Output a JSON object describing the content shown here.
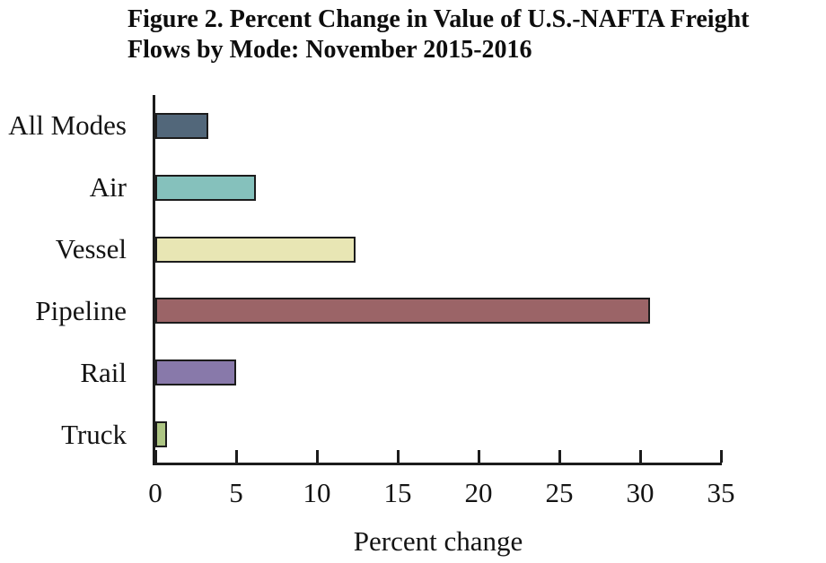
{
  "title": {
    "line1": "Figure 2. Percent Change in Value of U.S.-NAFTA Freight",
    "line2": "Flows by Mode: November 2015-2016"
  },
  "chart_data": {
    "type": "bar",
    "orientation": "horizontal",
    "title": "Figure 2. Percent Change in Value of U.S.-NAFTA Freight Flows by Mode: November 2015-2016",
    "categories": [
      "All Modes",
      "Air",
      "Vessel",
      "Pipeline",
      "Rail",
      "Truck"
    ],
    "values": [
      3.3,
      6.2,
      12.4,
      30.6,
      5.0,
      0.7
    ],
    "bar_colors": [
      "#52677a",
      "#85c1bc",
      "#e8e6b4",
      "#9b6467",
      "#8879aa",
      "#adc583"
    ],
    "bar_border_color": "#1c1c1c",
    "xlabel": "Percent change",
    "ylabel": "",
    "x_ticks": [
      0,
      5,
      10,
      15,
      20,
      25,
      30,
      35
    ],
    "xlim": [
      0,
      35
    ],
    "grid": false,
    "legend": false,
    "axis_color": "#1c1c1c"
  }
}
